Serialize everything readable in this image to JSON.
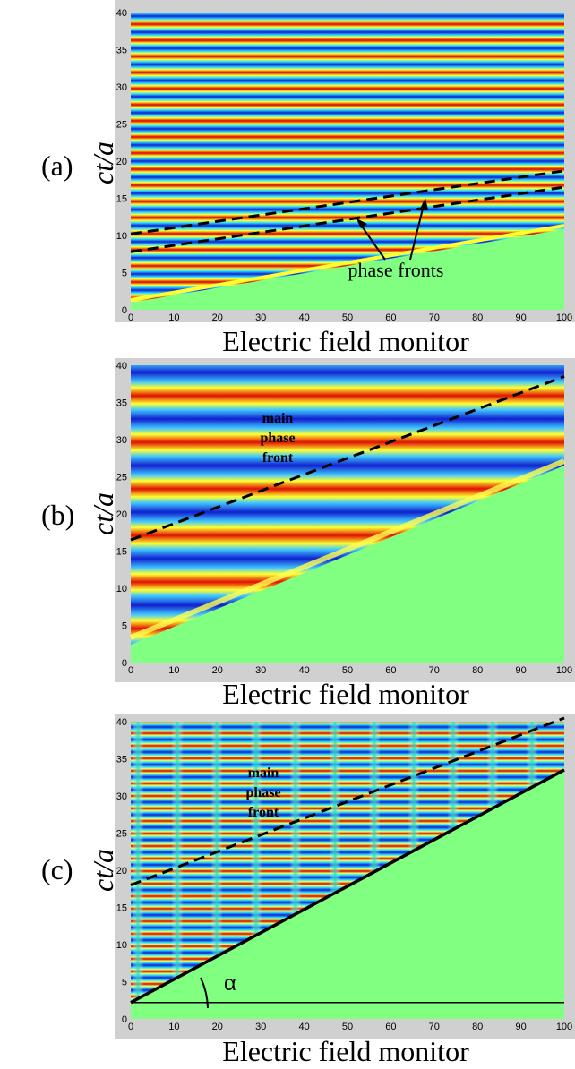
{
  "figure": {
    "x_axis_title": "Electric field monitor",
    "y_axis_title": "ct/a",
    "x_ticks": [
      0,
      10,
      20,
      30,
      40,
      50,
      60,
      70,
      80,
      90,
      100
    ],
    "y_ticks": [
      0,
      5,
      10,
      15,
      20,
      25,
      30,
      35,
      40
    ],
    "xlim": [
      0,
      100
    ],
    "ylim": [
      0,
      40
    ],
    "colors": {
      "background_region": "#80ff80",
      "red": "#d80000",
      "blue": "#1020d0",
      "yellow": "#ffff30",
      "cyan": "#30e0ff"
    }
  },
  "panels": [
    {
      "id": "a",
      "label": "(a)",
      "annotation": "phase fronts",
      "lines": [
        {
          "style": "dashed",
          "points": [
            [
              0,
              10.2
            ],
            [
              100,
              18.7
            ]
          ]
        },
        {
          "style": "dashed",
          "points": [
            [
              0,
              7.8
            ],
            [
              100,
              16.5
            ]
          ]
        }
      ]
    },
    {
      "id": "b",
      "label": "(b)",
      "annotation": [
        "main",
        "phase",
        "front"
      ],
      "lines": [
        {
          "style": "dashed",
          "points": [
            [
              0,
              16.5
            ],
            [
              100,
              38.5
            ]
          ]
        }
      ]
    },
    {
      "id": "c",
      "label": "(c)",
      "annotation": [
        "main",
        "phase",
        "front"
      ],
      "angle_label": "α",
      "lines": [
        {
          "style": "dashed",
          "points": [
            [
              0,
              18
            ],
            [
              100,
              40.5
            ]
          ]
        },
        {
          "style": "solid",
          "points": [
            [
              0,
              2.2
            ],
            [
              100,
              33.5
            ]
          ]
        },
        {
          "style": "solid-thin",
          "points": [
            [
              0,
              2.2
            ],
            [
              100,
              2.2
            ]
          ]
        }
      ]
    }
  ]
}
